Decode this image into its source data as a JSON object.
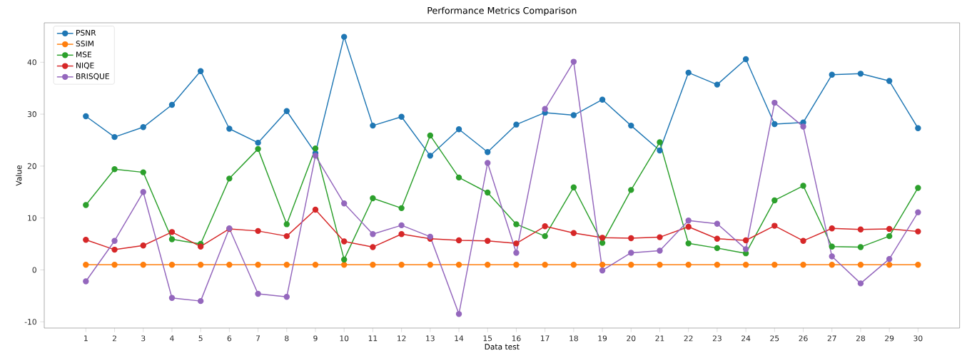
{
  "chart_data": {
    "type": "line",
    "title": "Performance Metrics Comparison",
    "xlabel": "Data test",
    "ylabel": "Value",
    "x": [
      1,
      2,
      3,
      4,
      5,
      6,
      7,
      8,
      9,
      10,
      11,
      12,
      13,
      14,
      15,
      16,
      17,
      18,
      19,
      20,
      21,
      22,
      23,
      24,
      25,
      26,
      27,
      28,
      29,
      30
    ],
    "xlim": [
      -0.45,
      31.45
    ],
    "xticks": [
      1,
      2,
      3,
      4,
      5,
      6,
      7,
      8,
      9,
      10,
      11,
      12,
      13,
      14,
      15,
      16,
      17,
      18,
      19,
      20,
      21,
      22,
      23,
      24,
      25,
      26,
      27,
      28,
      29,
      30
    ],
    "ylim": [
      -11.2,
      47.6
    ],
    "yticks": [
      -10,
      0,
      10,
      20,
      30,
      40
    ],
    "marker": "circle",
    "line_style": "solid",
    "legend": "top left",
    "grid": false,
    "series": [
      {
        "name": "PSNR",
        "color": "#1f77b4",
        "values": [
          29.6,
          25.6,
          27.5,
          31.8,
          38.3,
          27.2,
          24.5,
          30.6,
          22.5,
          44.9,
          27.8,
          29.5,
          22.0,
          27.1,
          22.7,
          28.0,
          30.3,
          29.8,
          32.8,
          27.8,
          23.0,
          38.0,
          35.7,
          40.6,
          28.1,
          28.4,
          37.6,
          37.8,
          36.4,
          27.3
        ]
      },
      {
        "name": "SSIM",
        "color": "#ff7f0e",
        "values": [
          1.0,
          1.0,
          1.0,
          1.0,
          1.0,
          1.0,
          1.0,
          1.0,
          1.0,
          1.0,
          1.0,
          1.0,
          1.0,
          1.0,
          1.0,
          1.0,
          1.0,
          1.0,
          1.0,
          1.0,
          1.0,
          1.0,
          1.0,
          1.0,
          1.0,
          1.0,
          1.0,
          1.0,
          1.0,
          1.0
        ]
      },
      {
        "name": "MSE",
        "color": "#2ca02c",
        "values": [
          12.5,
          19.4,
          18.8,
          5.9,
          5.0,
          17.6,
          23.3,
          8.8,
          23.4,
          2.0,
          13.8,
          11.9,
          25.9,
          17.8,
          14.9,
          8.8,
          6.5,
          15.9,
          5.2,
          15.4,
          24.6,
          5.1,
          4.2,
          3.2,
          13.4,
          16.2,
          4.5,
          4.4,
          6.5,
          15.8
        ]
      },
      {
        "name": "NIQE",
        "color": "#d62728",
        "values": [
          5.8,
          3.9,
          4.7,
          7.3,
          4.5,
          7.9,
          7.5,
          6.5,
          11.6,
          5.5,
          4.4,
          6.9,
          6.0,
          5.7,
          5.6,
          5.1,
          8.4,
          7.1,
          6.2,
          6.1,
          6.3,
          8.3,
          6.0,
          5.7,
          8.5,
          5.6,
          8.0,
          7.8,
          7.9,
          7.4
        ]
      },
      {
        "name": "BRISQUE",
        "color": "#9467bd",
        "values": [
          -2.2,
          5.6,
          15.0,
          -5.4,
          -6.0,
          8.0,
          -4.6,
          -5.2,
          22.0,
          12.8,
          6.9,
          8.6,
          6.4,
          -8.5,
          20.6,
          3.3,
          31.0,
          40.1,
          -0.1,
          3.3,
          3.7,
          9.5,
          8.9,
          4.0,
          32.2,
          27.6,
          2.6,
          -2.6,
          2.1,
          11.1
        ]
      }
    ]
  }
}
